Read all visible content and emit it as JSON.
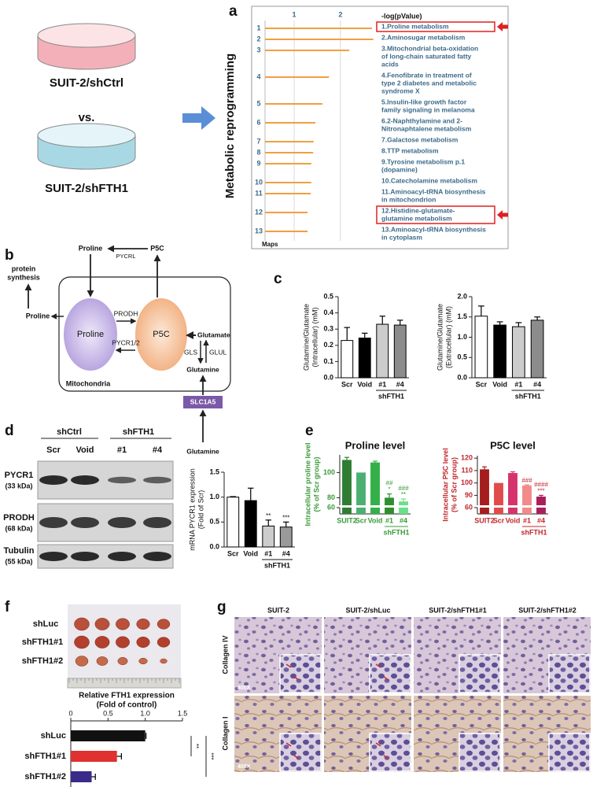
{
  "figure": {
    "panel_labels": [
      "a",
      "b",
      "c",
      "d",
      "e",
      "f",
      "g"
    ],
    "a": {
      "condition_1": "SUIT-2/shCtrl",
      "versus": "vs.",
      "condition_2": "SUIT-2/shFTH1",
      "process": "Metabolic reprogramming"
    },
    "b": {
      "proline_top": "Proline",
      "p5c_top": "P5C",
      "pycrl": "PYCRL",
      "protein_synthesis": [
        "protein",
        "synthesis"
      ],
      "proline_out": "Proline",
      "proline": "Proline",
      "p5c": "P5C",
      "prodh": "PRODH",
      "pycr": "PYCR1/2",
      "glutamate": "Glutamate",
      "gls": "GLS",
      "glul": "GLUL",
      "glutamine_inner": "Glutamine",
      "compartment": "Mitochondria",
      "transporter": "SLC1A5",
      "glutamine_outer": "Glutamine"
    },
    "d": {
      "groups": [
        "shCtrl",
        "shFTH1"
      ],
      "lanes": [
        "Scr",
        "Void",
        "#1",
        "#4"
      ],
      "proteins": [
        {
          "name": "PYCR1",
          "size": "(33 kDa)"
        },
        {
          "name": "PRODH",
          "size": "(68 kDa)"
        },
        {
          "name": "Tubulin",
          "size": "(55 kDa)"
        }
      ]
    },
    "f": {
      "groups": [
        "shLuc",
        "shFTH1#1",
        "shFTH1#2"
      ]
    },
    "g": {
      "columns": [
        "SUIT-2",
        "SUIT-2/shLuc",
        "SUIT-2/shFTH1#1",
        "SUIT-2/shFTH1#2"
      ],
      "rows": [
        "Collagen IV",
        "Collagen I"
      ],
      "magnification": "400X"
    }
  },
  "chart_data": [
    {
      "type": "bar",
      "orientation": "horizontal",
      "x_title": "-log(pValue)",
      "y_title": "Maps",
      "xlim": [
        0.37,
        2.75
      ],
      "xticks": [
        1,
        2
      ],
      "grid": true,
      "color": "#f0a040",
      "categories": [
        "1",
        "2",
        "3",
        "4",
        "5",
        "6",
        "7",
        "8",
        "9",
        "10",
        "11",
        "12",
        "13"
      ],
      "pathways": [
        [
          "1.Proline metabolism"
        ],
        [
          "2.Aminosugar metabolism"
        ],
        [
          "3.Mitochondrial beta-oxidation",
          "of long-chain saturated fatty",
          "acids"
        ],
        [
          "4.Fenofibrate in treatment of",
          "type 2 diabetes and metabolic",
          "syndrome X"
        ],
        [
          "5.Insulin-like growth factor",
          "family signaling in melanoma"
        ],
        [
          "6.2-Naphthylamine and 2-",
          "Nitronaphtalene metabolism"
        ],
        [
          "7.Galactose metabolism"
        ],
        [
          "8.TTP metabolism"
        ],
        [
          "9.Tyrosine metabolism p.1",
          "(dopamine)"
        ],
        [
          "10.Catecholamine metabolism"
        ],
        [
          "11.Aminoacyl-tRNA biosynthesis",
          "in mitochondrion"
        ],
        [
          "12.Histidine-glutamate-",
          "glutamine metabolism"
        ],
        [
          "13.Aminoacyl-tRNA biosynthesis",
          "in cytoplasm"
        ]
      ],
      "values": [
        2.68,
        2.71,
        2.19,
        1.75,
        1.61,
        1.46,
        1.42,
        1.41,
        1.37,
        1.37,
        1.36,
        1.29,
        1.29
      ]
    },
    {
      "type": "bar",
      "y_title": [
        "Glutamine/Glutamate",
        "(Intracellular) (mM)"
      ],
      "ylim": [
        0,
        0.5
      ],
      "yticks": [
        {
          "value": 0,
          "label": "0.0"
        },
        0.1,
        0.2,
        0.3,
        0.4,
        0.5
      ],
      "categories": [
        "Scr",
        "Void",
        "#1",
        "#4"
      ],
      "group_label": "shFTH1",
      "values": [
        0.23,
        0.245,
        0.33,
        0.325
      ],
      "errors": [
        0.08,
        0.03,
        0.05,
        0.03
      ],
      "colors": [
        "#ffffff",
        "#000000",
        "#cccccc",
        "#8c8c8c"
      ],
      "outline": true
    },
    {
      "type": "bar",
      "y_title": [
        "Glutamine/Glutamate",
        "(Extracellular) (mM)"
      ],
      "ylim": [
        0,
        2
      ],
      "yticks": [
        {
          "value": 0,
          "label": "0.0"
        },
        0.5,
        {
          "value": 1,
          "label": "1.0"
        },
        1.5,
        {
          "value": 2,
          "label": "2.0"
        }
      ],
      "categories": [
        "Scr",
        "Void",
        "#1",
        "#4"
      ],
      "group_label": "shFTH1",
      "values": [
        1.52,
        1.3,
        1.26,
        1.42
      ],
      "errors": [
        0.25,
        0.08,
        0.1,
        0.08
      ],
      "colors": [
        "#ffffff",
        "#000000",
        "#cccccc",
        "#8c8c8c"
      ],
      "outline": true
    },
    {
      "type": "bar",
      "y_title": [
        "mRNA PYCR1 expression",
        "(Fold of Scr)"
      ],
      "ylim": [
        0,
        1.5
      ],
      "yticks": [
        {
          "value": 0,
          "label": "0.0"
        },
        0.5,
        {
          "value": 1,
          "label": "1.0"
        },
        1.5
      ],
      "categories": [
        "Scr",
        "Void",
        "#1",
        "#4"
      ],
      "group_label": "shFTH1",
      "values": [
        1.0,
        0.93,
        0.42,
        0.4
      ],
      "errors": [
        0.01,
        0.25,
        0.12,
        0.1
      ],
      "annotations": [
        null,
        null,
        [
          "**"
        ],
        [
          "***"
        ]
      ],
      "colors": [
        "#ffffff",
        "#000000",
        "#cccccc",
        "#9a9a9a"
      ],
      "outline": true
    },
    {
      "type": "bar",
      "title": "Proline level",
      "y_title": [
        "Intracellular proline level",
        "(% of Scr group)"
      ],
      "ylim_lower": [
        0,
        60
      ],
      "ylim": [
        74,
        114
      ],
      "yticks": [
        60,
        80,
        100
      ],
      "categories": [
        "SUIT2",
        "Scr",
        "Void",
        "#1",
        "#4"
      ],
      "group_label": "shFTH1",
      "values": [
        110,
        100,
        108,
        80,
        77
      ],
      "errors": [
        2,
        null,
        1,
        3,
        2
      ],
      "annotations": [
        null,
        null,
        null,
        [
          "##",
          "*"
        ],
        [
          "###",
          "**"
        ]
      ],
      "colors": [
        "#2e7d32",
        "#4caf72",
        "#33b04a",
        "#2f8f2f",
        "#69e08a"
      ],
      "label_color": "#3a9a3a",
      "outline": false
    },
    {
      "type": "bar",
      "title": "P5C level",
      "y_title": [
        "Intracellular P5C level",
        "(% of Scr group)"
      ],
      "ylim_lower": [
        0,
        60
      ],
      "ylim": [
        82,
        122
      ],
      "yticks": [
        60,
        90,
        100,
        110,
        120
      ],
      "categories": [
        "SUIT2",
        "Scr",
        "Void",
        "#1",
        "#4"
      ],
      "group_label": "shFTH1",
      "values": [
        111,
        100,
        108,
        98,
        89
      ],
      "errors": [
        2,
        null,
        1,
        0.5,
        1
      ],
      "annotations": [
        null,
        null,
        null,
        [
          "###"
        ],
        [
          "####",
          "***"
        ]
      ],
      "colors": [
        "#a51d1d",
        "#e24b4b",
        "#d6336c",
        "#f28a8a",
        "#a8205a"
      ],
      "label_color": "#c0282d",
      "outline": false
    },
    {
      "type": "bar",
      "orientation": "horizontal",
      "title": [
        "Relative FTH1 expression",
        "(Fold of control)"
      ],
      "xlim": [
        0,
        1.5
      ],
      "xticks": [
        0,
        0.5,
        {
          "value": 1,
          "label": "1.0"
        },
        1.5
      ],
      "categories": [
        "shLuc",
        "shFTH1#1",
        "shFTH1#2"
      ],
      "values": [
        1.0,
        0.62,
        0.28
      ],
      "errors": [
        0.01,
        0.06,
        0.05
      ],
      "colors": [
        "#111111",
        "#e03030",
        "#3a2a8a"
      ],
      "significance": [
        "**",
        "***"
      ]
    }
  ]
}
